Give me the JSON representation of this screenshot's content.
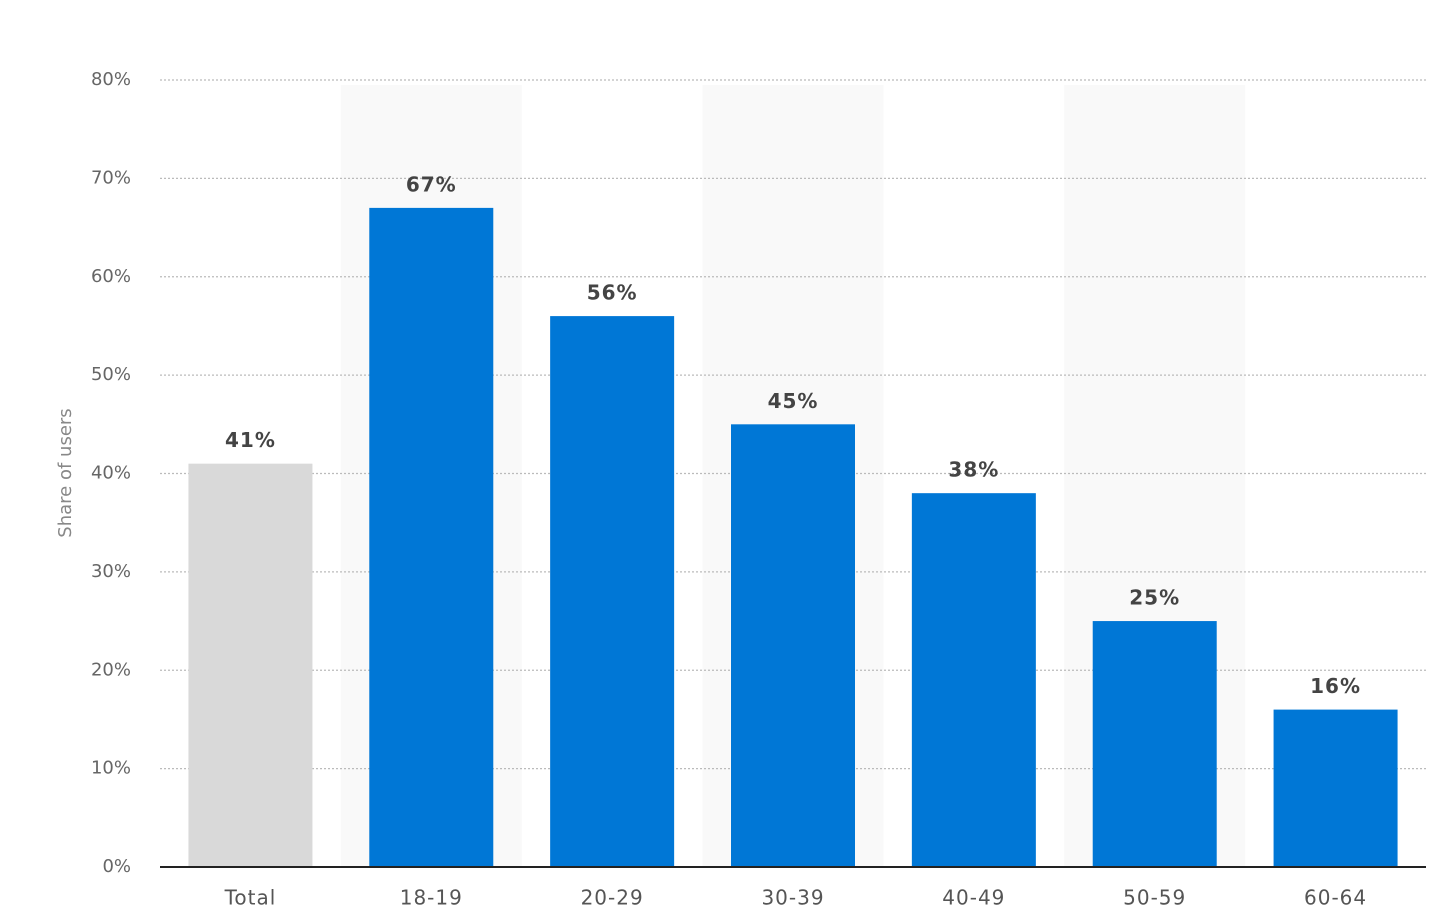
{
  "chart_data": {
    "type": "bar",
    "y_label": "Share of users",
    "categories": [
      "Total",
      "18-19",
      "20-29",
      "30-39",
      "40-49",
      "50-59",
      "60-64"
    ],
    "values": [
      41,
      67,
      56,
      45,
      38,
      25,
      16
    ],
    "value_labels": [
      "41%",
      "67%",
      "56%",
      "45%",
      "38%",
      "25%",
      "16%"
    ],
    "colors": [
      "#d9d9d9",
      "#0077d6",
      "#0077d6",
      "#0077d6",
      "#0077d6",
      "#0077d6",
      "#0077d6"
    ],
    "ylim": [
      0,
      80
    ],
    "yticks": [
      {
        "value": 0,
        "label": "0%"
      },
      {
        "value": 10,
        "label": "10%"
      },
      {
        "value": 20,
        "label": "20%"
      },
      {
        "value": 30,
        "label": "30%"
      },
      {
        "value": 40,
        "label": "40%"
      },
      {
        "value": 50,
        "label": "50%"
      },
      {
        "value": 60,
        "label": "60%"
      },
      {
        "value": 70,
        "label": "70%"
      },
      {
        "value": 80,
        "label": "80%"
      }
    ],
    "grid": true
  }
}
